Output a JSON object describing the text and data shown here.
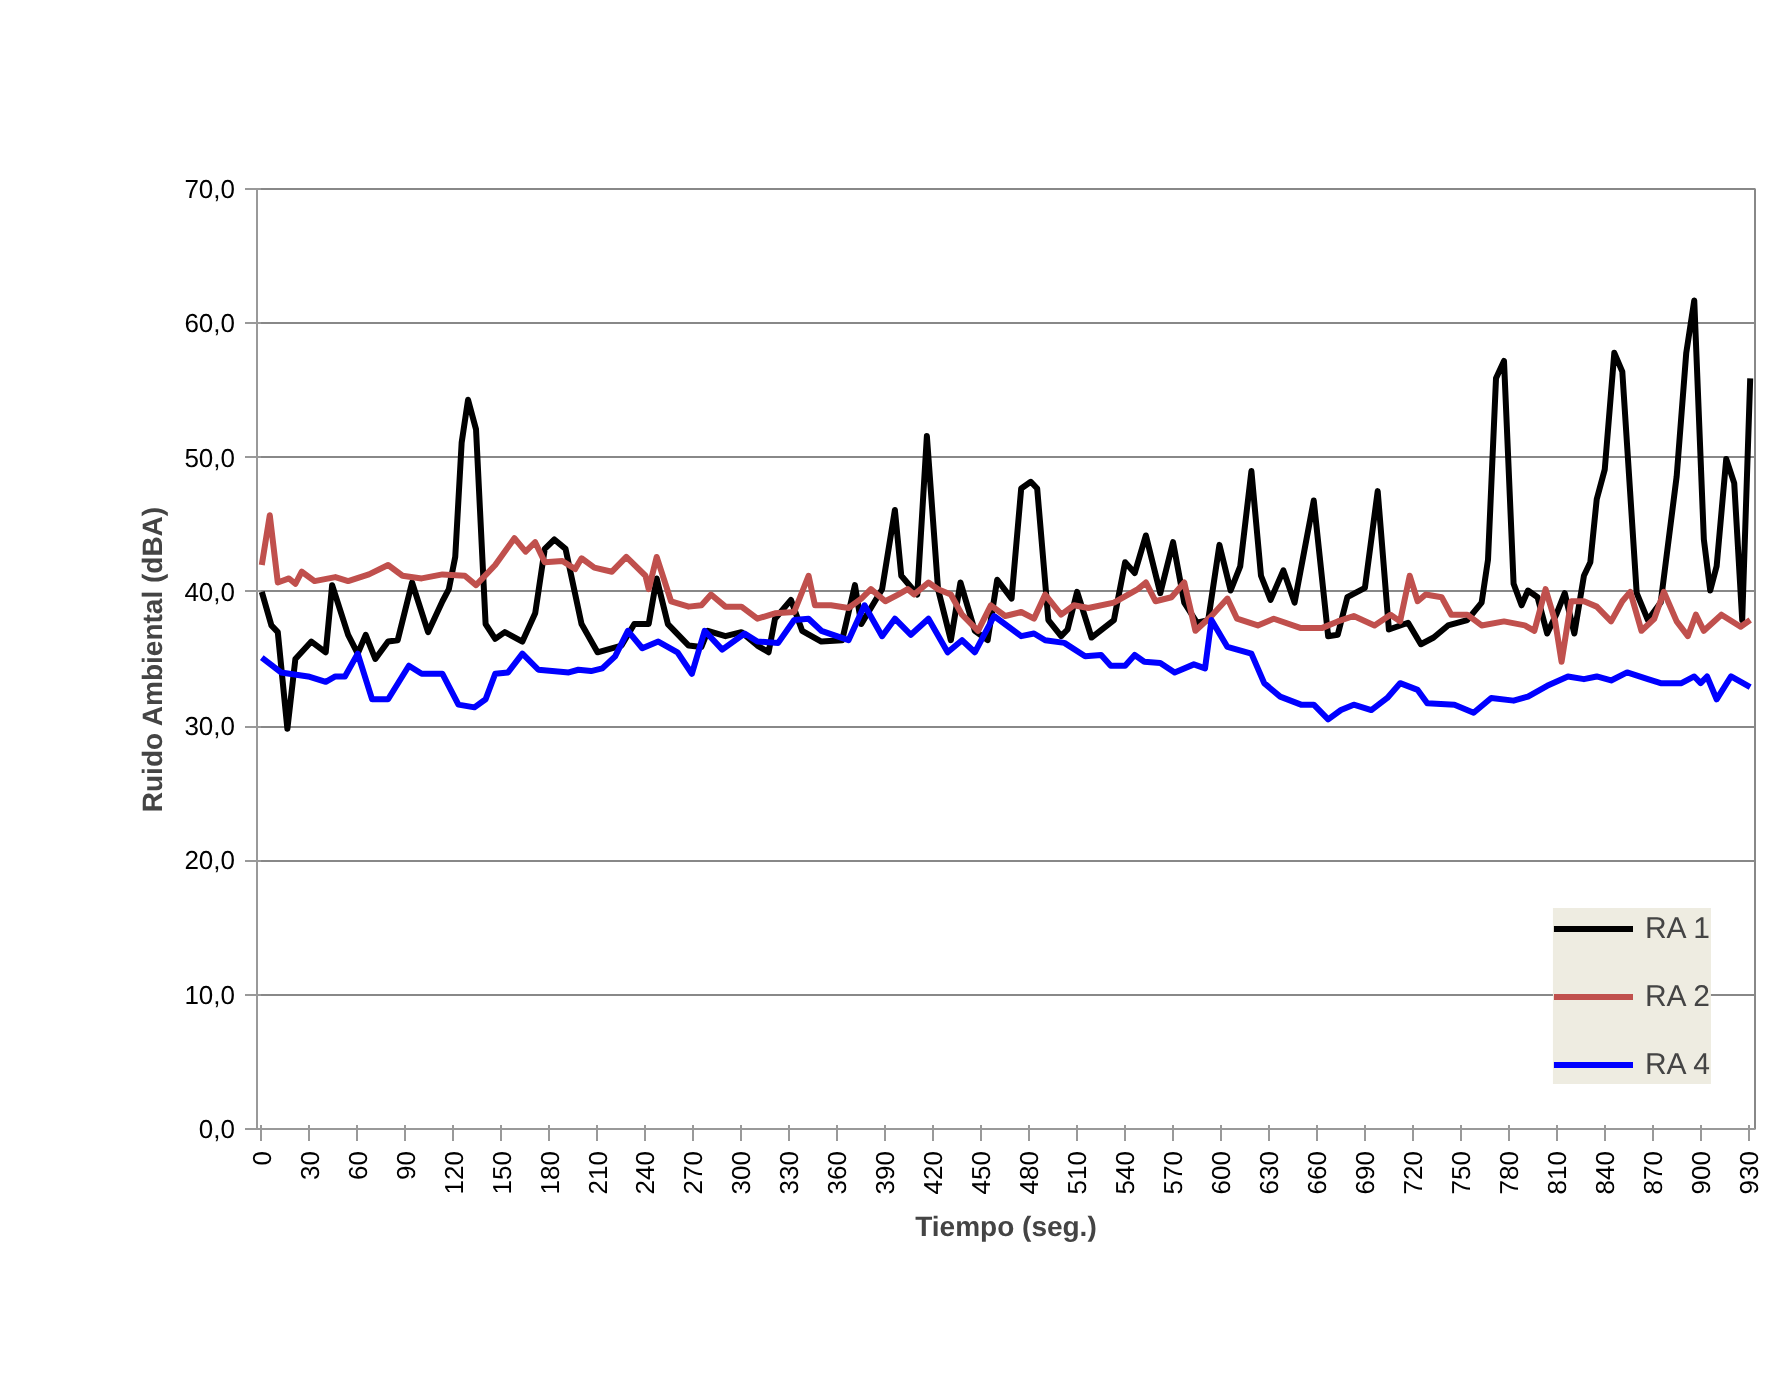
{
  "chart_data": {
    "type": "line",
    "xlabel": "Tiempo (seg.)",
    "ylabel": "Ruido Ambiental (dBA)",
    "xlim": [
      -3,
      934
    ],
    "ylim": [
      0,
      70
    ],
    "xticks": [
      0,
      30,
      60,
      90,
      120,
      150,
      180,
      210,
      240,
      270,
      300,
      330,
      360,
      390,
      420,
      450,
      480,
      510,
      540,
      570,
      600,
      630,
      660,
      690,
      720,
      750,
      780,
      810,
      840,
      870,
      900,
      930
    ],
    "yticks": [
      {
        "value": 0,
        "label": "0,0"
      },
      {
        "value": 10,
        "label": "10,0"
      },
      {
        "value": 20,
        "label": "20,0"
      },
      {
        "value": 30,
        "label": "30,0"
      },
      {
        "value": 40,
        "label": "40,0"
      },
      {
        "value": 50,
        "label": "50,0"
      },
      {
        "value": 60,
        "label": "60,0"
      },
      {
        "value": 70,
        "label": "70,0"
      }
    ],
    "grid": "y",
    "legend": "bottom right",
    "marker": "none",
    "line_style": "solid",
    "series": [
      {
        "name": "RA 1",
        "color": "#000000",
        "x": [
          0,
          6,
          10,
          16,
          21,
          31,
          40,
          44,
          54,
          60,
          65,
          71,
          79,
          85,
          94,
          104,
          113,
          117,
          121,
          125,
          129,
          134,
          140,
          146,
          152,
          163,
          171,
          177,
          183,
          190,
          200,
          210,
          225,
          233,
          242,
          247,
          254,
          267,
          275,
          279,
          290,
          300,
          310,
          317,
          321,
          331,
          338,
          350,
          363,
          371,
          375,
          388,
          396,
          400,
          410,
          416,
          423,
          431,
          437,
          446,
          454,
          460,
          469,
          475,
          481,
          485,
          492,
          500,
          504,
          510,
          519,
          533,
          540,
          546,
          553,
          562,
          570,
          577,
          585,
          592,
          599,
          606,
          612,
          619,
          625,
          631,
          639,
          646,
          658,
          667,
          673,
          679,
          690,
          698,
          705,
          717,
          725,
          733,
          742,
          754,
          763,
          767,
          772,
          777,
          783,
          788,
          792,
          798,
          804,
          810,
          815,
          821,
          827,
          831,
          835,
          840,
          846,
          851,
          860,
          867,
          875,
          885,
          891,
          896,
          902,
          906,
          910,
          916,
          921,
          926,
          931
        ],
        "values": [
          40.0,
          37.5,
          37.0,
          29.8,
          35.0,
          36.3,
          35.5,
          40.5,
          36.8,
          35.4,
          36.8,
          35.0,
          36.3,
          36.4,
          40.7,
          37.0,
          39.3,
          40.2,
          42.6,
          51.1,
          54.3,
          52.1,
          37.6,
          36.5,
          37.0,
          36.3,
          38.4,
          43.2,
          43.9,
          43.2,
          37.6,
          35.5,
          36.0,
          37.6,
          37.6,
          41.0,
          37.6,
          36.0,
          35.9,
          37.1,
          36.7,
          37.0,
          36.0,
          35.5,
          38.0,
          39.4,
          37.1,
          36.3,
          36.4,
          40.5,
          37.6,
          40.2,
          46.1,
          41.2,
          39.8,
          51.6,
          40.2,
          36.4,
          40.7,
          37.1,
          36.4,
          40.9,
          39.5,
          47.7,
          48.2,
          47.7,
          37.9,
          36.7,
          37.2,
          40.0,
          36.6,
          37.9,
          42.2,
          41.4,
          44.2,
          39.9,
          43.7,
          39.2,
          37.7,
          37.9,
          43.5,
          40.1,
          41.9,
          49.0,
          41.2,
          39.4,
          41.6,
          39.2,
          46.8,
          36.7,
          36.8,
          39.6,
          40.3,
          47.5,
          37.2,
          37.7,
          36.1,
          36.6,
          37.5,
          37.9,
          39.2,
          42.4,
          55.9,
          57.2,
          40.6,
          39.0,
          40.1,
          39.6,
          36.9,
          38.4,
          39.9,
          36.9,
          41.2,
          42.2,
          46.9,
          49.1,
          57.8,
          56.4,
          39.9,
          37.9,
          39.2,
          48.6,
          57.8,
          61.7,
          43.9,
          40.1,
          41.9,
          49.9,
          48.1,
          37.9,
          55.9
        ]
      },
      {
        "name": "RA 2",
        "color": "#c0504d",
        "x": [
          0,
          5,
          10,
          17,
          21,
          25,
          33,
          46,
          54,
          67,
          79,
          88,
          100,
          113,
          127,
          134,
          146,
          158,
          165,
          171,
          177,
          188,
          196,
          200,
          208,
          219,
          228,
          240,
          242,
          247,
          256,
          267,
          275,
          281,
          290,
          300,
          310,
          321,
          333,
          342,
          346,
          356,
          367,
          375,
          381,
          390,
          398,
          404,
          408,
          417,
          423,
          431,
          438,
          448,
          456,
          465,
          475,
          483,
          490,
          500,
          508,
          517,
          533,
          548,
          553,
          559,
          569,
          577,
          584,
          594,
          604,
          610,
          623,
          633,
          650,
          663,
          673,
          683,
          696,
          706,
          712,
          718,
          723,
          728,
          738,
          744,
          754,
          763,
          777,
          790,
          796,
          803,
          809,
          813,
          819,
          827,
          835,
          844,
          851,
          856,
          863,
          871,
          877,
          885,
          892,
          897,
          902,
          913,
          925,
          931
        ],
        "values": [
          42.0,
          45.7,
          40.7,
          41.0,
          40.6,
          41.5,
          40.8,
          41.1,
          40.8,
          41.3,
          42.0,
          41.2,
          41.0,
          41.3,
          41.2,
          40.5,
          42.0,
          44.0,
          43.0,
          43.7,
          42.2,
          42.3,
          41.7,
          42.5,
          41.8,
          41.5,
          42.6,
          41.2,
          40.2,
          42.6,
          39.3,
          38.9,
          39.0,
          39.8,
          38.9,
          38.9,
          38.0,
          38.4,
          38.5,
          41.2,
          39.0,
          39.0,
          38.8,
          39.5,
          40.2,
          39.3,
          39.8,
          40.2,
          39.8,
          40.7,
          40.2,
          39.8,
          38.3,
          37.1,
          39.0,
          38.2,
          38.5,
          38.0,
          39.8,
          38.3,
          39.0,
          38.8,
          39.2,
          40.2,
          40.7,
          39.3,
          39.6,
          40.7,
          37.1,
          38.2,
          39.5,
          38.0,
          37.5,
          38.0,
          37.3,
          37.3,
          37.8,
          38.2,
          37.5,
          38.3,
          37.8,
          41.2,
          39.3,
          39.8,
          39.6,
          38.3,
          38.3,
          37.5,
          37.8,
          37.5,
          37.1,
          40.2,
          37.8,
          34.8,
          39.3,
          39.3,
          38.9,
          37.8,
          39.3,
          40.0,
          37.1,
          38.0,
          40.0,
          37.8,
          36.7,
          38.3,
          37.1,
          38.3,
          37.4,
          37.9
        ]
      },
      {
        "name": "RA 4",
        "color": "#0000ff",
        "x": [
          0,
          12,
          29,
          40,
          46,
          52,
          60,
          69,
          79,
          92,
          100,
          113,
          123,
          133,
          140,
          146,
          154,
          163,
          173,
          192,
          198,
          206,
          213,
          221,
          229,
          238,
          248,
          260,
          269,
          277,
          288,
          302,
          310,
          323,
          333,
          342,
          350,
          367,
          377,
          388,
          396,
          406,
          417,
          429,
          438,
          446,
          458,
          475,
          483,
          490,
          502,
          515,
          525,
          531,
          540,
          546,
          552,
          562,
          571,
          583,
          590,
          594,
          604,
          619,
          627,
          637,
          650,
          658,
          667,
          675,
          683,
          694,
          704,
          712,
          723,
          729,
          746,
          758,
          769,
          783,
          792,
          804,
          817,
          827,
          835,
          844,
          854,
          867,
          875,
          888,
          896,
          900,
          904,
          910,
          919,
          931
        ],
        "values": [
          35.1,
          34.0,
          33.7,
          33.3,
          33.7,
          33.7,
          35.4,
          32.0,
          32.0,
          34.5,
          33.9,
          33.9,
          31.6,
          31.4,
          32.0,
          33.9,
          34.0,
          35.4,
          34.2,
          34.0,
          34.2,
          34.1,
          34.3,
          35.2,
          37.1,
          35.8,
          36.3,
          35.5,
          33.9,
          37.1,
          35.7,
          36.9,
          36.3,
          36.2,
          37.9,
          38.0,
          37.1,
          36.4,
          39.0,
          36.7,
          38.0,
          36.8,
          38.0,
          35.5,
          36.4,
          35.5,
          38.2,
          36.7,
          36.9,
          36.4,
          36.2,
          35.2,
          35.3,
          34.5,
          34.5,
          35.3,
          34.8,
          34.7,
          34.0,
          34.6,
          34.3,
          37.9,
          35.9,
          35.4,
          33.2,
          32.2,
          31.6,
          31.6,
          30.5,
          31.2,
          31.6,
          31.2,
          32.1,
          33.2,
          32.7,
          31.7,
          31.6,
          31.0,
          32.1,
          31.9,
          32.2,
          33.0,
          33.7,
          33.5,
          33.7,
          33.4,
          34.0,
          33.5,
          33.2,
          33.2,
          33.7,
          33.2,
          33.7,
          32.0,
          33.7,
          32.9
        ]
      }
    ]
  }
}
